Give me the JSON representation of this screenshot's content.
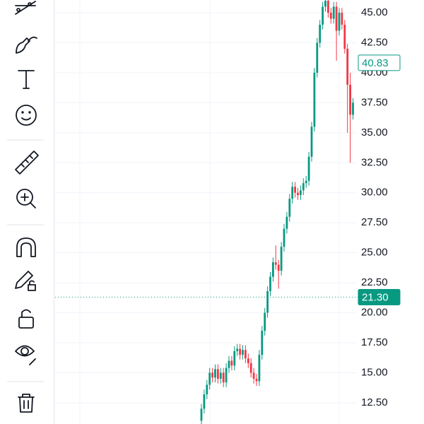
{
  "chart_data": {
    "type": "candlestick",
    "ylim": [
      10.73,
      46.06
    ],
    "yticks": [
      {
        "value": 12.5,
        "label": "12.50"
      },
      {
        "value": 15,
        "label": "15.00"
      },
      {
        "value": 17.5,
        "label": "17.50"
      },
      {
        "value": 20,
        "label": "20.00"
      },
      {
        "value": 22.5,
        "label": "22.50"
      },
      {
        "value": 25,
        "label": "25.00"
      },
      {
        "value": 27.5,
        "label": "27.50"
      },
      {
        "value": 30,
        "label": "30.00"
      },
      {
        "value": 32.5,
        "label": "32.50"
      },
      {
        "value": 35,
        "label": "35.00"
      },
      {
        "value": 37.5,
        "label": "37.50"
      },
      {
        "value": 40,
        "label": "40.00"
      },
      {
        "value": 42.5,
        "label": "42.50"
      },
      {
        "value": 45,
        "label": "45.00"
      }
    ],
    "grid": true,
    "up_color": "#089981",
    "down_color": "#f23645",
    "open": [
      11.0,
      12.0,
      13.2,
      14.0,
      15.0,
      14.6,
      15.3,
      14.5,
      15.0,
      14.2,
      15.4,
      16.0,
      15.6,
      16.8,
      17.0,
      16.5,
      16.9,
      16.2,
      15.8,
      15.0,
      14.5,
      14.3,
      16.5,
      18.5,
      20.0,
      21.8,
      23.0,
      24.2,
      24.0,
      23.5,
      25.5,
      27.0,
      28.0,
      29.5,
      30.5,
      30.0,
      29.8,
      30.2,
      30.8,
      31.0,
      33.0,
      35.5,
      40.0,
      42.5,
      44.0,
      45.5,
      46.0,
      45.0,
      44.5,
      45.5,
      43.5,
      45.0,
      44.0,
      42.0,
      39.0,
      36.5
    ],
    "high": [
      12.4,
      13.6,
      14.4,
      15.4,
      15.4,
      15.7,
      15.7,
      15.4,
      15.4,
      15.8,
      16.4,
      16.4,
      17.2,
      17.4,
      17.4,
      17.3,
      17.3,
      16.6,
      16.2,
      15.4,
      14.9,
      16.9,
      18.9,
      20.4,
      22.2,
      23.4,
      24.6,
      25.6,
      24.4,
      25.9,
      27.4,
      28.4,
      29.9,
      30.9,
      30.9,
      30.4,
      30.6,
      31.2,
      31.4,
      33.4,
      35.9,
      40.4,
      42.9,
      44.4,
      45.9,
      46.4,
      46.4,
      45.4,
      45.9,
      45.9,
      45.4,
      45.4,
      44.4,
      42.4,
      40.0,
      37.9
    ],
    "low": [
      10.6,
      11.6,
      12.8,
      13.6,
      14.2,
      14.2,
      14.1,
      14.1,
      13.8,
      13.8,
      15.0,
      15.2,
      15.2,
      16.4,
      16.1,
      16.1,
      15.8,
      15.4,
      14.6,
      14.1,
      13.9,
      13.9,
      16.1,
      18.1,
      19.6,
      21.4,
      22.6,
      23.6,
      22.0,
      23.1,
      25.1,
      26.6,
      27.6,
      29.1,
      29.6,
      29.4,
      29.4,
      29.8,
      30.4,
      30.6,
      32.6,
      35.1,
      39.6,
      42.1,
      43.6,
      45.1,
      44.6,
      44.1,
      44.1,
      41.0,
      43.1,
      43.6,
      41.6,
      35.0,
      32.5,
      36.1
    ],
    "close": [
      12.0,
      13.2,
      14.0,
      15.0,
      14.6,
      15.3,
      14.5,
      15.0,
      14.2,
      15.4,
      16.0,
      15.6,
      16.8,
      17.0,
      16.5,
      16.9,
      16.2,
      15.8,
      15.0,
      14.5,
      14.3,
      16.5,
      18.5,
      20.0,
      21.8,
      23.0,
      24.2,
      24.0,
      23.5,
      25.5,
      27.0,
      28.0,
      29.5,
      30.5,
      30.0,
      29.8,
      30.2,
      30.8,
      31.0,
      33.0,
      35.5,
      40.0,
      42.5,
      44.0,
      45.5,
      46.0,
      45.0,
      44.5,
      45.5,
      43.5,
      45.0,
      44.0,
      42.0,
      39.0,
      36.5,
      37.5
    ],
    "price_markers": [
      {
        "value": 40.83,
        "label": "40.83",
        "style": "outline"
      },
      {
        "value": 21.3,
        "label": "21.30",
        "style": "filled"
      }
    ]
  }
}
